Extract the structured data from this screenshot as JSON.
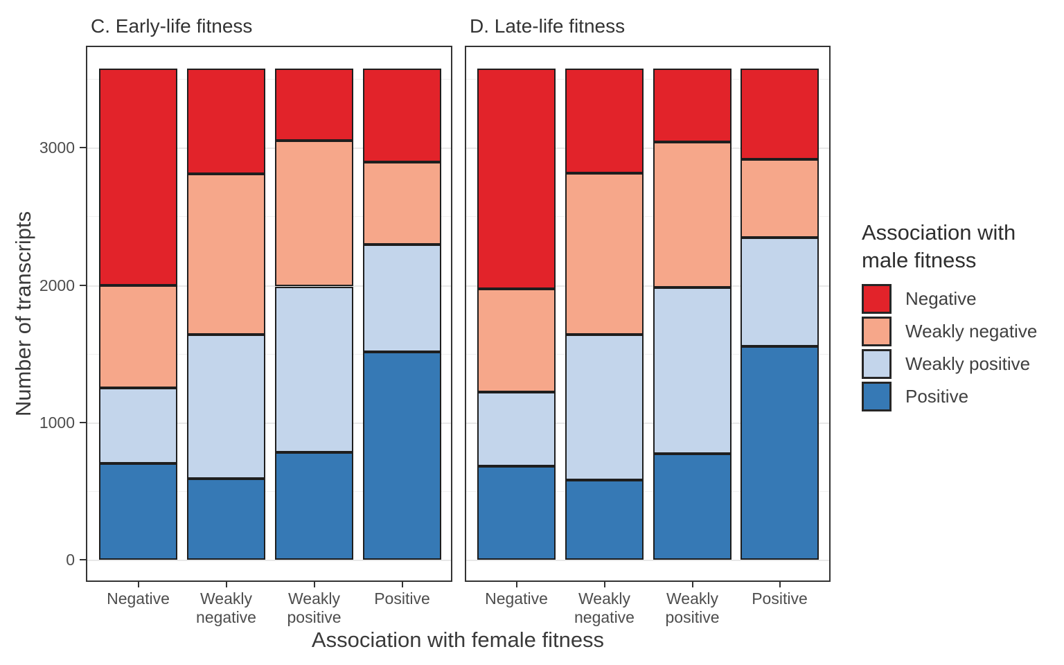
{
  "figure": {
    "x_axis_title": "Association with female fitness",
    "y_axis_title": "Number of transcripts",
    "y_ticks": [
      "0",
      "1000",
      "2000",
      "3000"
    ]
  },
  "legend": {
    "title_line1": "Association with",
    "title_line2": "male fitness",
    "items": [
      {
        "label": "Negative",
        "color": "#E2232A"
      },
      {
        "label": "Weakly negative",
        "color": "#F6A78A"
      },
      {
        "label": "Weakly positive",
        "color": "#C3D5EB"
      },
      {
        "label": "Positive",
        "color": "#3679B5"
      }
    ]
  },
  "chart_data": {
    "type": "bar",
    "subtype": "stacked",
    "title": "",
    "xlabel": "Association with female fitness",
    "ylabel": "Number of transcripts",
    "ylim": [
      0,
      3575
    ],
    "yticks": [
      0,
      1000,
      2000,
      3000
    ],
    "minor_gridlines": [
      500,
      1500,
      2500,
      3500
    ],
    "grid": true,
    "legend_position": "right",
    "legend_title": "Association with male fitness",
    "categories": [
      "Negative",
      "Weakly negative",
      "Weakly positive",
      "Positive"
    ],
    "x_tick_lines": [
      [
        "Negative"
      ],
      [
        "Weakly",
        "negative"
      ],
      [
        "Weakly",
        "positive"
      ],
      [
        "Positive"
      ]
    ],
    "stack_order_bottom_to_top": [
      "Positive",
      "Weakly positive",
      "Weakly negative",
      "Negative"
    ],
    "panels": [
      {
        "title": "C. Early-life fitness",
        "series": [
          {
            "name": "Positive",
            "values": [
              700,
              590,
              780,
              1515
            ]
          },
          {
            "name": "Weakly positive",
            "values": [
              550,
              1050,
              1210,
              780
            ]
          },
          {
            "name": "Weakly negative",
            "values": [
              750,
              1170,
              1060,
              600
            ]
          },
          {
            "name": "Negative",
            "values": [
              1575,
              765,
              525,
              680
            ]
          }
        ]
      },
      {
        "title": "D. Late-life fitness",
        "series": [
          {
            "name": "Positive",
            "values": [
              680,
              580,
              770,
              1555
            ]
          },
          {
            "name": "Weakly positive",
            "values": [
              540,
              1060,
              1210,
              790
            ]
          },
          {
            "name": "Weakly negative",
            "values": [
              750,
              1175,
              1060,
              570
            ]
          },
          {
            "name": "Negative",
            "values": [
              1605,
              760,
              535,
              660
            ]
          }
        ]
      }
    ]
  }
}
